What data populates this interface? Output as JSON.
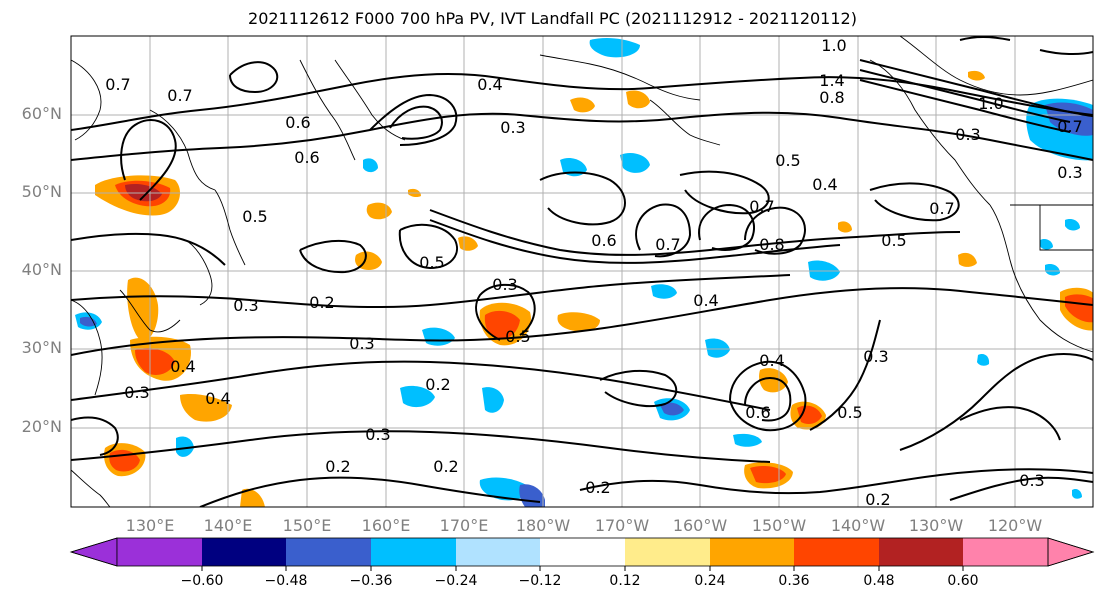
{
  "title": "2021112612 F000 700 hPa PV, IVT Landfall PC (2021112912 - 2021120112)",
  "map": {
    "latitude_labels": [
      "60°N",
      "50°N",
      "40°N",
      "30°N",
      "20°N"
    ],
    "longitude_labels": [
      "130°E",
      "140°E",
      "150°E",
      "160°E",
      "170°E",
      "180°W",
      "170°W",
      "160°W",
      "150°W",
      "140°W",
      "130°W",
      "120°W"
    ],
    "contour_labels": [
      "0.7",
      "0.7",
      "0.6",
      "0.6",
      "0.4",
      "0.5",
      "0.3",
      "0.3",
      "0.4",
      "0.2",
      "0.3",
      "0.2",
      "0.3",
      "0.5",
      "0.2",
      "0.4",
      "0.6",
      "0.7",
      "0.5",
      "0.4",
      "0.7",
      "0.8",
      "0.3",
      "0.3",
      "0.5",
      "0.4",
      "0.6",
      "0.5",
      "0.2",
      "0.3",
      "1.0",
      "1.4",
      "0.8",
      "1.0",
      "0.3",
      "0.7",
      "0.3",
      "0.7",
      "0.2",
      "0.5",
      "0.4",
      "0.2",
      "0.3"
    ],
    "colors": {
      "land_outline": "#000000",
      "contour": "#000000",
      "gridline": "#b0b0b0",
      "axis_label": "#808080"
    }
  },
  "colorbar": {
    "bins": [
      "#9b30d9",
      "#000080",
      "#3a5fcd",
      "#00bfff",
      "#b0e2ff",
      "#ffffff",
      "#ffec8b",
      "#ffa500",
      "#ff4500",
      "#b22222",
      "#ff82ab"
    ],
    "tick_labels": [
      "−0.60",
      "−0.48",
      "−0.36",
      "−0.24",
      "−0.12",
      "0.12",
      "0.24",
      "0.36",
      "0.48",
      "0.60"
    ]
  }
}
